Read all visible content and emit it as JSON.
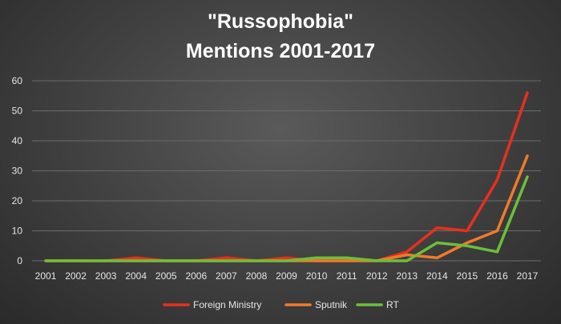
{
  "chart_data": {
    "type": "line",
    "title": "\"Russophobia\"",
    "subtitle": "Mentions 2001-2017",
    "xlabel": "",
    "ylabel": "",
    "categories": [
      "2001",
      "2002",
      "2003",
      "2004",
      "2005",
      "2006",
      "2007",
      "2008",
      "2009",
      "2010",
      "2011",
      "2012",
      "2013",
      "2014",
      "2015",
      "2016",
      "2017"
    ],
    "ylim": [
      0,
      60
    ],
    "yticks": [
      0,
      10,
      20,
      30,
      40,
      50,
      60
    ],
    "grid": true,
    "legend": "bottom",
    "series": [
      {
        "name": "Foreign Ministry",
        "color": "#e8301c",
        "values": [
          0,
          0,
          0,
          1,
          0,
          0,
          1,
          0,
          1,
          0,
          0,
          0,
          3,
          11,
          10,
          27,
          56
        ]
      },
      {
        "name": "Sputnik",
        "color": "#f07a2a",
        "values": [
          0,
          0,
          0,
          0,
          0,
          0,
          0,
          0,
          0,
          0,
          0,
          0,
          2,
          1,
          6,
          10,
          35
        ]
      },
      {
        "name": "RT",
        "color": "#6cbf3a",
        "values": [
          0,
          0,
          0,
          0,
          0,
          0,
          0,
          0,
          0,
          1,
          1,
          0,
          0,
          6,
          5,
          3,
          28
        ]
      }
    ]
  }
}
